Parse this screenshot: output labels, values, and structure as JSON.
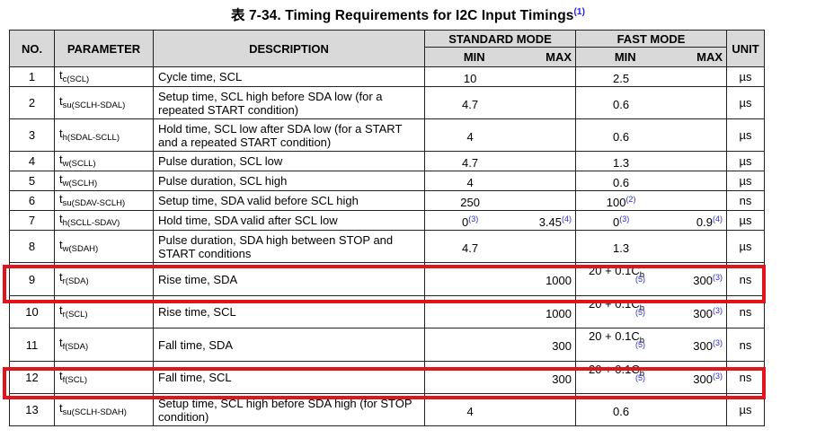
{
  "title": {
    "text": "表 7-34. Timing Requirements for I2C Input Timings",
    "footnote": "(1)"
  },
  "header": {
    "no": "NO.",
    "parameter": "PARAMETER",
    "description": "DESCRIPTION",
    "standard_mode": "STANDARD MODE",
    "fast_mode": "FAST MODE",
    "unit": "UNIT",
    "min": "MIN",
    "max": "MAX"
  },
  "rows": [
    {
      "no": "1",
      "param_base": "t",
      "param_sub": "c(SCL)",
      "desc": "Cycle time, SCL",
      "std_min": "10",
      "std_min_fn": "",
      "std_max": "",
      "std_max_fn": "",
      "fast_min": "2.5",
      "fast_min_fn": "",
      "fast_max": "",
      "fast_max_fn": "",
      "unit": "µs",
      "highlight": false
    },
    {
      "no": "2",
      "param_base": "t",
      "param_sub": "su(SCLH-SDAL)",
      "desc": "Setup time, SCL high before SDA low (for a repeated START condition)",
      "std_min": "4.7",
      "std_min_fn": "",
      "std_max": "",
      "std_max_fn": "",
      "fast_min": "0.6",
      "fast_min_fn": "",
      "fast_max": "",
      "fast_max_fn": "",
      "unit": "µs",
      "highlight": false
    },
    {
      "no": "3",
      "param_base": "t",
      "param_sub": "h(SDAL-SCLL)",
      "desc": "Hold time, SCL low after SDA low (for a START and a repeated START condition)",
      "std_min": "4",
      "std_min_fn": "",
      "std_max": "",
      "std_max_fn": "",
      "fast_min": "0.6",
      "fast_min_fn": "",
      "fast_max": "",
      "fast_max_fn": "",
      "unit": "µs",
      "highlight": false
    },
    {
      "no": "4",
      "param_base": "t",
      "param_sub": "w(SCLL)",
      "desc": "Pulse duration, SCL low",
      "std_min": "4.7",
      "std_min_fn": "",
      "std_max": "",
      "std_max_fn": "",
      "fast_min": "1.3",
      "fast_min_fn": "",
      "fast_max": "",
      "fast_max_fn": "",
      "unit": "µs",
      "highlight": false
    },
    {
      "no": "5",
      "param_base": "t",
      "param_sub": "w(SCLH)",
      "desc": "Pulse duration, SCL high",
      "std_min": "4",
      "std_min_fn": "",
      "std_max": "",
      "std_max_fn": "",
      "fast_min": "0.6",
      "fast_min_fn": "",
      "fast_max": "",
      "fast_max_fn": "",
      "unit": "µs",
      "highlight": false
    },
    {
      "no": "6",
      "param_base": "t",
      "param_sub": "su(SDAV-SCLH)",
      "desc": "Setup time, SDA valid before SCL high",
      "std_min": "250",
      "std_min_fn": "",
      "std_max": "",
      "std_max_fn": "",
      "fast_min": "100",
      "fast_min_fn": "(2)",
      "fast_max": "",
      "fast_max_fn": "",
      "unit": "ns",
      "highlight": false
    },
    {
      "no": "7",
      "param_base": "t",
      "param_sub": "h(SCLL-SDAV)",
      "desc": "Hold time, SDA valid after SCL low",
      "std_min": "0",
      "std_min_fn": "(3)",
      "std_max": "3.45",
      "std_max_fn": "(4)",
      "fast_min": "0",
      "fast_min_fn": "(3)",
      "fast_max": "0.9",
      "fast_max_fn": "(4)",
      "unit": "µs",
      "highlight": false
    },
    {
      "no": "8",
      "param_base": "t",
      "param_sub": "w(SDAH)",
      "desc": "Pulse duration, SDA high between STOP and START conditions",
      "std_min": "4.7",
      "std_min_fn": "",
      "std_max": "",
      "std_max_fn": "",
      "fast_min": "1.3",
      "fast_min_fn": "",
      "fast_max": "",
      "fast_max_fn": "",
      "unit": "µs",
      "highlight": false
    },
    {
      "no": "9",
      "param_base": "t",
      "param_sub": "r(SDA)",
      "desc": "Rise time, SDA",
      "std_min": "",
      "std_min_fn": "",
      "std_max": "1000",
      "std_max_fn": "",
      "fast_min": "20 + 0.1C",
      "fast_min_sub": "b",
      "fast_min_fn": "(5)",
      "fast_max": "300",
      "fast_max_fn": "(3)",
      "unit": "ns",
      "highlight": true
    },
    {
      "no": "10",
      "param_base": "t",
      "param_sub": "r(SCL)",
      "desc": "Rise time, SCL",
      "std_min": "",
      "std_min_fn": "",
      "std_max": "1000",
      "std_max_fn": "",
      "fast_min": "20 + 0.1C",
      "fast_min_sub": "b",
      "fast_min_fn": "(5)",
      "fast_max": "300",
      "fast_max_fn": "(3)",
      "unit": "ns",
      "highlight": false
    },
    {
      "no": "11",
      "param_base": "t",
      "param_sub": "f(SDA)",
      "desc": "Fall time, SDA",
      "std_min": "",
      "std_min_fn": "",
      "std_max": "300",
      "std_max_fn": "",
      "fast_min": "20 + 0.1C",
      "fast_min_sub": "b",
      "fast_min_fn": "(5)",
      "fast_max": "300",
      "fast_max_fn": "(3)",
      "unit": "ns",
      "highlight": false
    },
    {
      "no": "12",
      "param_base": "t",
      "param_sub": "f(SCL)",
      "desc": "Fall time, SCL",
      "std_min": "",
      "std_min_fn": "",
      "std_max": "300",
      "std_max_fn": "",
      "fast_min": "20 + 0.1C",
      "fast_min_sub": "b",
      "fast_min_fn": "(5)",
      "fast_max": "300",
      "fast_max_fn": "(3)",
      "unit": "ns",
      "highlight": true
    },
    {
      "no": "13",
      "param_base": "t",
      "param_sub": "su(SCLH-SDAH)",
      "desc": "Setup time, SCL high before SDA high (for STOP condition)",
      "std_min": "4",
      "std_min_fn": "",
      "std_max": "",
      "std_max_fn": "",
      "fast_min": "0.6",
      "fast_min_fn": "",
      "fast_max": "",
      "fast_max_fn": "",
      "unit": "µs",
      "highlight": false
    }
  ],
  "colors": {
    "header_bg": "#d9d9d9",
    "footnote": "#2b2bd6",
    "highlight_box": "#e3131b",
    "border": "#222222"
  }
}
